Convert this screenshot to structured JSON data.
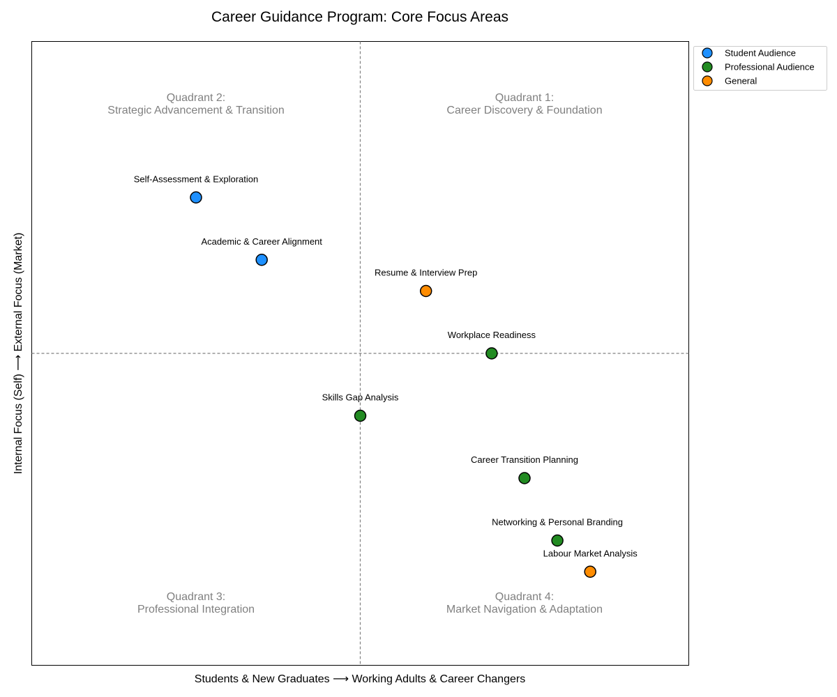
{
  "chart_data": {
    "type": "scatter",
    "title": "Career Guidance Program: Core Focus Areas",
    "xlabel": "Students & New Graduates ⟶ Working Adults & Career Changers",
    "ylabel": "Internal Focus (Self) ⟶ External Focus (Market)",
    "xlim": [
      -10,
      10
    ],
    "ylim": [
      -10,
      10
    ],
    "divider_lines": {
      "x": 0,
      "y": 0
    },
    "grid": false,
    "legend_position": "outside-top-right",
    "quadrants": [
      {
        "name": "Quadrant 2:",
        "subtitle": "Strategic Advancement & Transition",
        "x": -5,
        "y": 8
      },
      {
        "name": "Quadrant 1:",
        "subtitle": "Career Discovery & Foundation",
        "x": 5,
        "y": 8
      },
      {
        "name": "Quadrant 3:",
        "subtitle": "Professional Integration",
        "x": -5,
        "y": -8
      },
      {
        "name": "Quadrant 4:",
        "subtitle": "Market Navigation & Adaptation",
        "x": 5,
        "y": -8
      }
    ],
    "series": [
      {
        "name": "Student Audience",
        "color": "#1e90ff",
        "points": [
          {
            "label": "Self-Assessment & Exploration",
            "x": -5,
            "y": 5
          },
          {
            "label": "Academic & Career Alignment",
            "x": -3,
            "y": 3
          }
        ]
      },
      {
        "name": "Professional Audience",
        "color": "#228b22",
        "points": [
          {
            "label": "Workplace Readiness",
            "x": 4,
            "y": 0
          },
          {
            "label": "Skills Gap Analysis",
            "x": 0,
            "y": -2
          },
          {
            "label": "Career Transition Planning",
            "x": 5,
            "y": -4
          },
          {
            "label": "Networking & Personal Branding",
            "x": 6,
            "y": -6
          }
        ]
      },
      {
        "name": "General",
        "color": "#ff8c00",
        "points": [
          {
            "label": "Resume & Interview Prep",
            "x": 2,
            "y": 2
          },
          {
            "label": "Labour Market Analysis",
            "x": 7,
            "y": -7
          }
        ]
      }
    ]
  }
}
